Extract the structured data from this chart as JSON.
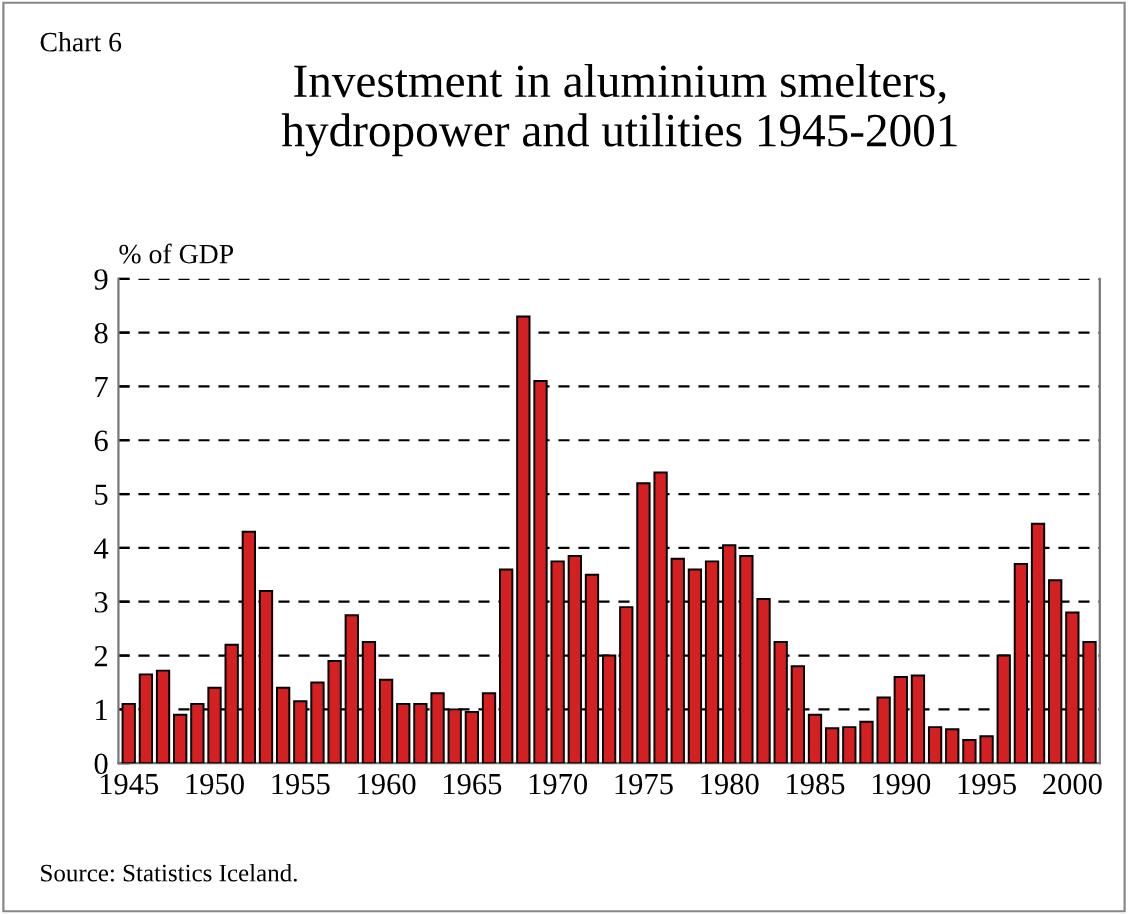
{
  "chart_data": {
    "type": "bar",
    "title": "Investment in aluminium smelters,\nhydropower and utilities 1945-2001",
    "ylabel": "% of GDP",
    "annotations": [
      "Chart 6",
      "Source: Statistics Iceland."
    ],
    "x": [
      1945,
      1946,
      1947,
      1948,
      1949,
      1950,
      1951,
      1952,
      1953,
      1954,
      1955,
      1956,
      1957,
      1958,
      1959,
      1960,
      1961,
      1962,
      1963,
      1964,
      1965,
      1966,
      1967,
      1968,
      1969,
      1970,
      1971,
      1972,
      1973,
      1974,
      1975,
      1976,
      1977,
      1978,
      1979,
      1980,
      1981,
      1982,
      1983,
      1984,
      1985,
      1986,
      1987,
      1988,
      1989,
      1990,
      1991,
      1992,
      1993,
      1994,
      1995,
      1996,
      1997,
      1998,
      1999,
      2000,
      2001
    ],
    "values": [
      1.1,
      1.65,
      1.72,
      0.9,
      1.1,
      1.4,
      2.2,
      4.3,
      3.2,
      1.4,
      1.15,
      1.5,
      1.9,
      2.75,
      2.25,
      1.55,
      1.1,
      1.1,
      1.3,
      1.0,
      0.95,
      1.3,
      3.6,
      8.3,
      7.1,
      3.75,
      3.85,
      3.5,
      2.0,
      2.9,
      5.2,
      5.4,
      3.8,
      3.6,
      3.75,
      4.05,
      3.85,
      3.05,
      2.25,
      1.8,
      0.9,
      0.65,
      0.67,
      0.77,
      1.22,
      1.6,
      1.63,
      0.67,
      0.63,
      0.43,
      0.5,
      2.0,
      3.7,
      4.45,
      3.4,
      2.8,
      2.25
    ],
    "color": "#d42020",
    "xlim": [
      1944.4,
      2001.6
    ],
    "xticks": [
      1945,
      1950,
      1955,
      1960,
      1965,
      1970,
      1975,
      1980,
      1985,
      1990,
      1995,
      2000
    ],
    "ylim": [
      0,
      9
    ],
    "yticks": [
      0,
      1,
      2,
      3,
      4,
      5,
      6,
      7,
      8,
      9
    ],
    "grid": "y",
    "line_style": "dashed"
  }
}
